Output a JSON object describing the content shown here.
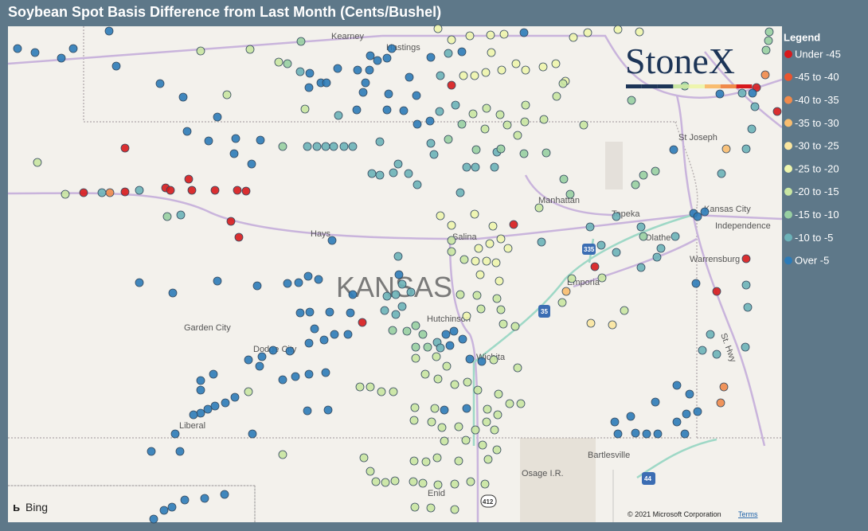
{
  "header": {
    "title": "Soybean Spot Basis Difference from Last Month (Cents/Bushel)"
  },
  "legend": {
    "title": "Legend",
    "items": [
      {
        "label": "Under -45",
        "color": "#d7191c"
      },
      {
        "label": "-45 to -40",
        "color": "#e8552f"
      },
      {
        "label": "-40 to -35",
        "color": "#f08a4b"
      },
      {
        "label": "-35 to -30",
        "color": "#f9bd6f"
      },
      {
        "label": "-30 to -25",
        "color": "#fbe6a0"
      },
      {
        "label": "-25 to -20",
        "color": "#eef5ad"
      },
      {
        "label": "-20 to -15",
        "color": "#c9e6a2"
      },
      {
        "label": "-15 to -10",
        "color": "#98cfa2"
      },
      {
        "label": "-10 to -5",
        "color": "#6cb2b8"
      },
      {
        "label": "Over -5",
        "color": "#2c7bb8"
      }
    ]
  },
  "logo": "StoneX",
  "map": {
    "state_label": "KANSAS",
    "cities": [
      "Kearney",
      "Hastings",
      "St Joseph",
      "Manhattan",
      "Topeka",
      "Kansas City",
      "Independence",
      "Olathe",
      "Hays",
      "Salina",
      "Emporia",
      "Warrensburg",
      "Garden City",
      "Dodge City",
      "Hutchinson",
      "Wichita",
      "Liberal",
      "Bartlesville",
      "Osage I.R.",
      "Enid",
      "St. Hwy"
    ],
    "shields": [
      "335",
      "35",
      "44",
      "412"
    ]
  },
  "attribution": {
    "provider": "Bing",
    "copyright": "© 2021 Microsoft Corporation",
    "terms": "Terms"
  }
}
